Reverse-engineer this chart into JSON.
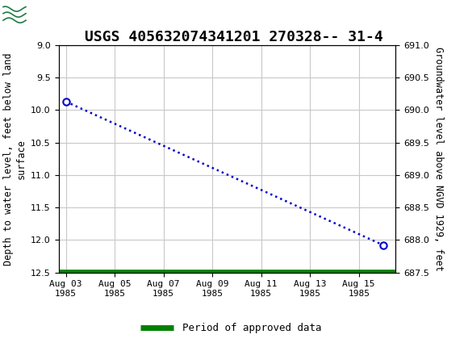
{
  "title": "USGS 405632074341201 270328-- 31-4",
  "ylabel_left": "Depth to water level, feet below land\nsurface",
  "ylabel_right": "Groundwater level above NGVD 1929, feet",
  "ylim_left": [
    12.5,
    9.0
  ],
  "ylim_right": [
    687.5,
    691.0
  ],
  "yticks_left": [
    9.0,
    9.5,
    10.0,
    10.5,
    11.0,
    11.5,
    12.0,
    12.5
  ],
  "yticks_right": [
    687.5,
    688.0,
    688.5,
    689.0,
    689.5,
    690.0,
    690.5,
    691.0
  ],
  "xtick_labels": [
    "Aug 03\n1985",
    "Aug 05\n1985",
    "Aug 07\n1985",
    "Aug 09\n1985",
    "Aug 11\n1985",
    "Aug 13\n1985",
    "Aug 15\n1985"
  ],
  "xtick_positions": [
    0,
    2,
    4,
    6,
    8,
    10,
    12
  ],
  "point1_x": 0,
  "point1_y": 9.87,
  "point2_x": 13,
  "point2_y": 12.08,
  "xlim": [
    -0.3,
    13.5
  ],
  "header_bg_color": "#1e7a45",
  "plot_bg_color": "#ffffff",
  "grid_color": "#c8c8c8",
  "line_color": "#0000cc",
  "marker_color": "#0000cc",
  "green_bar_color": "#008000",
  "title_fontsize": 13,
  "axis_label_fontsize": 8.5,
  "tick_fontsize": 8,
  "legend_fontsize": 9
}
